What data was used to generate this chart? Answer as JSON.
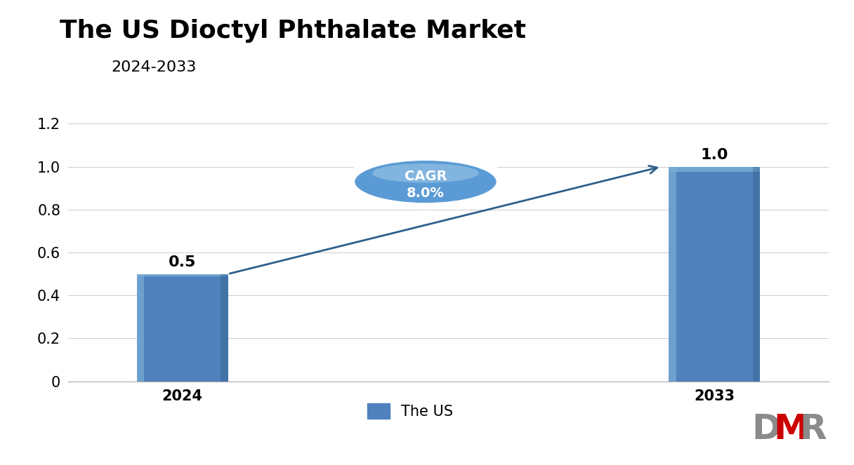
{
  "title": "The US Dioctyl Phthalate Market",
  "subtitle": "2024-2033",
  "categories": [
    "2024",
    "2033"
  ],
  "values": [
    0.5,
    1.0
  ],
  "bar_color": "#4F81BD",
  "bar_color_light": "#7BAFD4",
  "bar_color_dark": "#2E5F8A",
  "ylim": [
    0,
    1.3
  ],
  "yticks": [
    0,
    0.2,
    0.4,
    0.6,
    0.8,
    1.0,
    1.2
  ],
  "cagr_text_line1": "CAGR",
  "cagr_text_line2": "8.0%",
  "legend_label": "The US",
  "title_fontsize": 26,
  "subtitle_fontsize": 16,
  "tick_fontsize": 15,
  "label_fontsize": 15,
  "bar_label_fontsize": 16,
  "background_color": "#FFFFFF",
  "arrow_color": "#2E5F8A",
  "ellipse_fill": "#5B9BD5",
  "ellipse_edge": "#FFFFFF",
  "cagr_text_color": "#FFFFFF"
}
